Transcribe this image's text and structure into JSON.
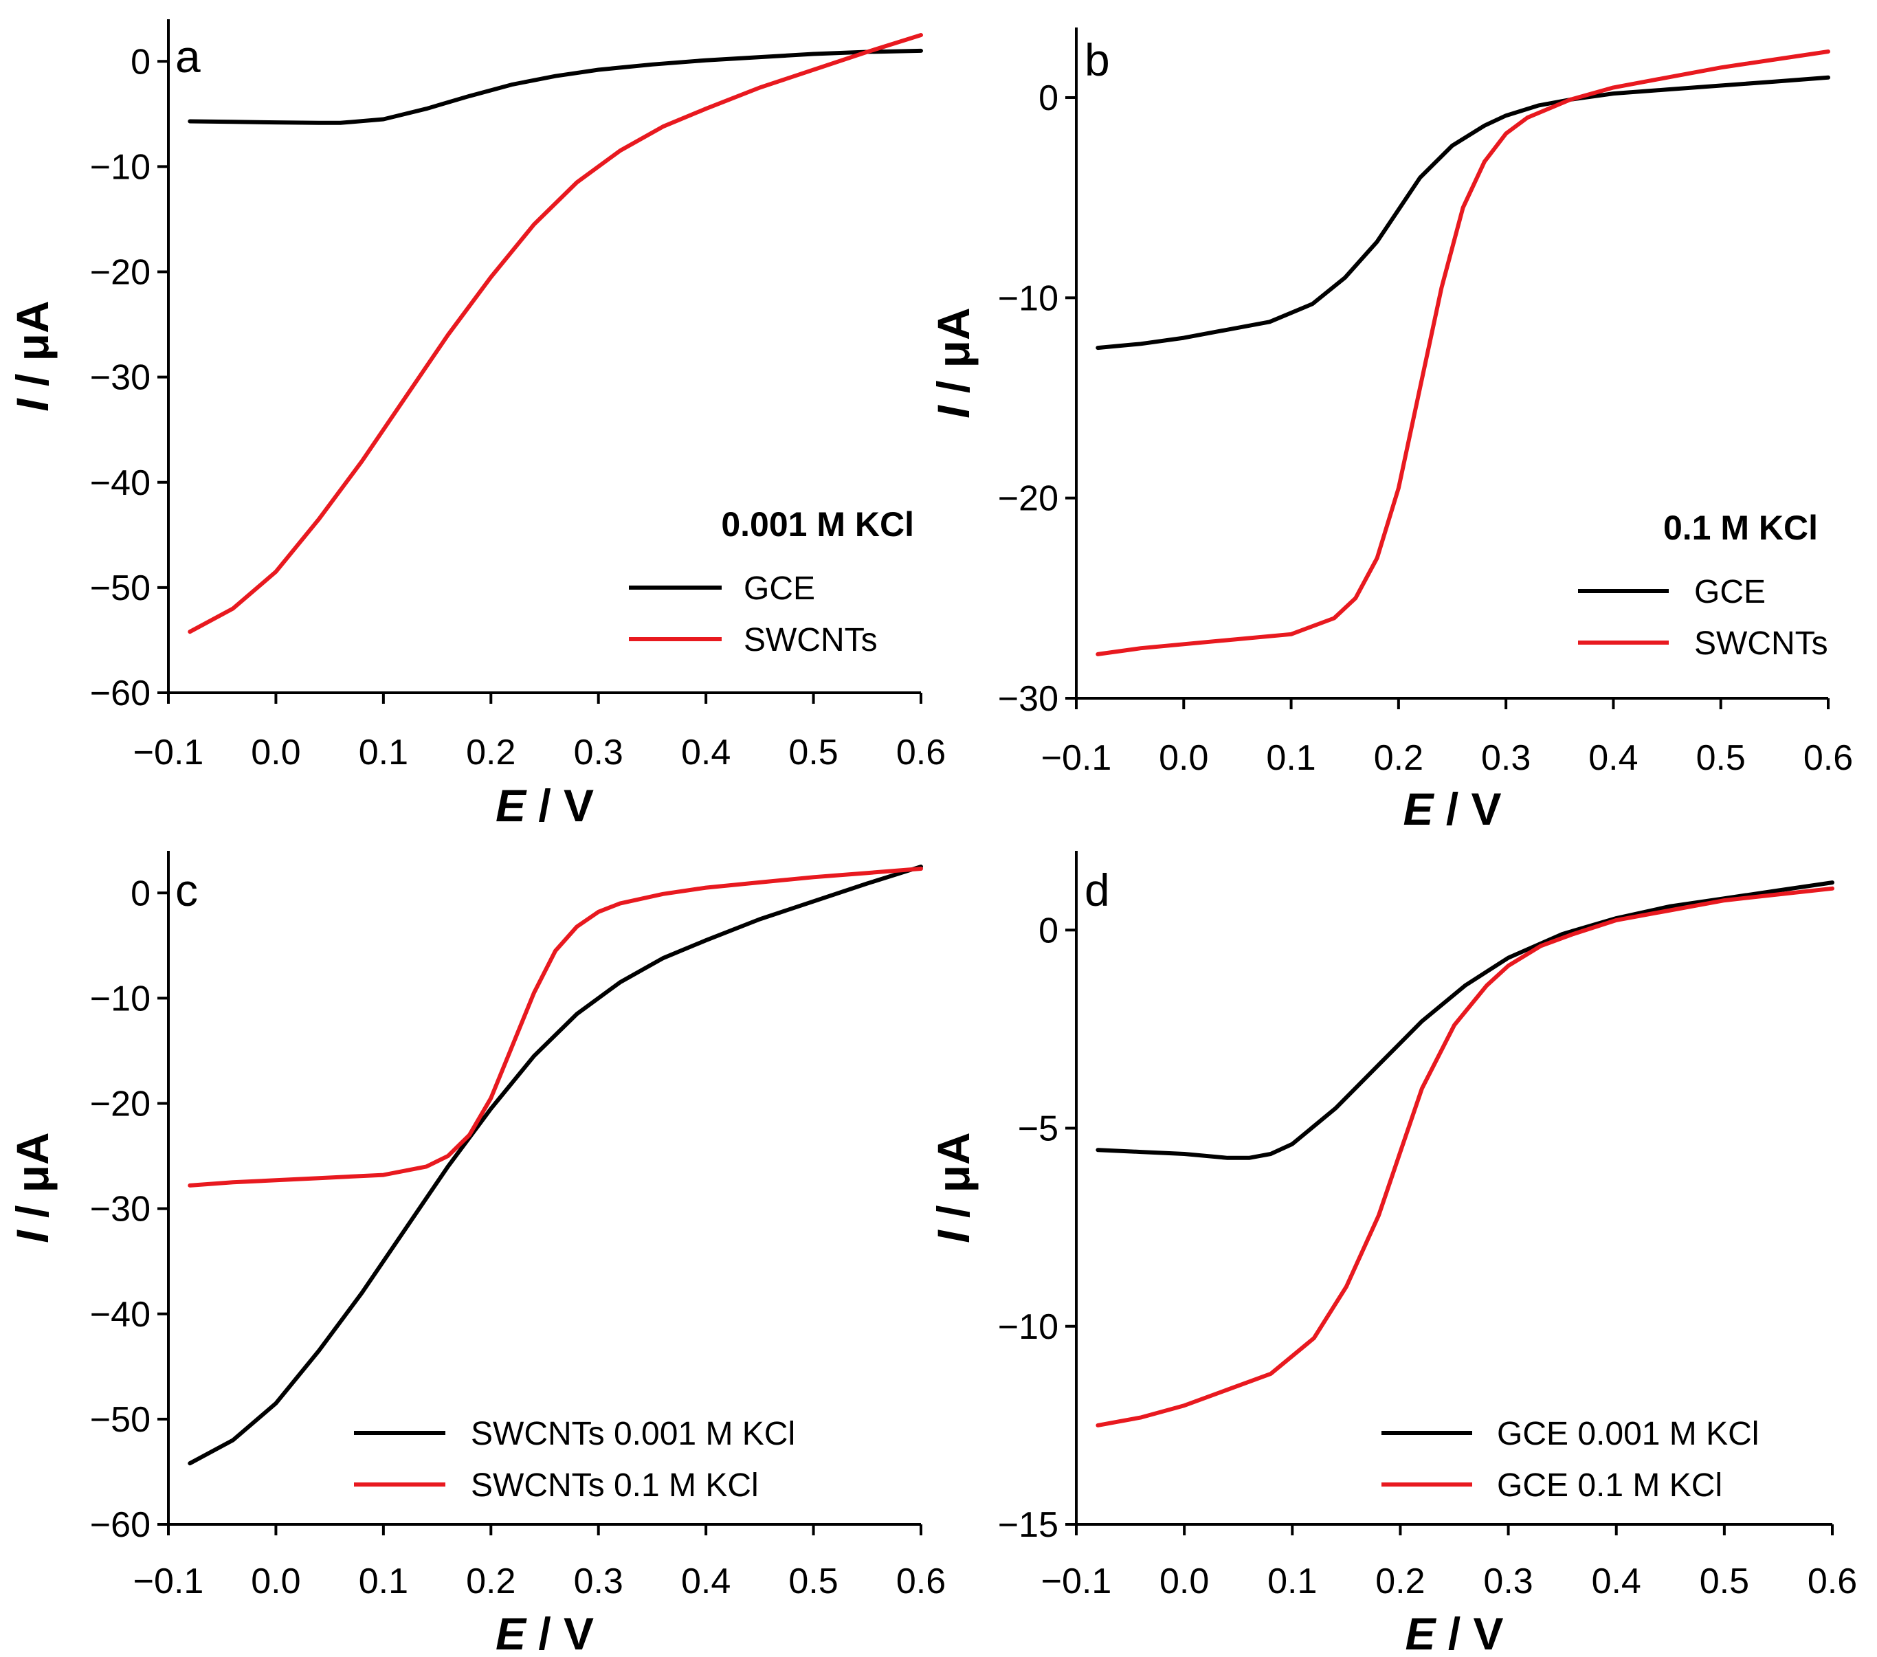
{
  "chart_data": [
    {
      "type": "line",
      "panel": "a",
      "xlabel": {
        "var": "E",
        "unit": "V"
      },
      "ylabel": {
        "var": "I",
        "unit": "μA"
      },
      "xlim": [
        -0.1,
        0.6
      ],
      "ylim": [
        -60,
        4
      ],
      "xticks": [
        -0.1,
        0.0,
        0.1,
        0.2,
        0.3,
        0.4,
        0.5,
        0.6
      ],
      "xtick_labels": [
        "−0.1",
        "0.0",
        "0.1",
        "0.2",
        "0.3",
        "0.4",
        "0.5",
        "0.6"
      ],
      "yticks": [
        0,
        -10,
        -20,
        -30,
        -40,
        -50,
        -60
      ],
      "ytick_labels": [
        "0",
        "−10",
        "−20",
        "−30",
        "−40",
        "−50",
        "−60"
      ],
      "annotation": "0.001 M KCl",
      "series": [
        {
          "name": "GCE",
          "color": "#000000",
          "x": [
            -0.08,
            -0.04,
            0.0,
            0.04,
            0.06,
            0.1,
            0.14,
            0.18,
            0.22,
            0.26,
            0.3,
            0.35,
            0.4,
            0.45,
            0.5,
            0.55,
            0.6
          ],
          "y": [
            -5.7,
            -5.75,
            -5.8,
            -5.85,
            -5.85,
            -5.5,
            -4.5,
            -3.3,
            -2.2,
            -1.4,
            -0.8,
            -0.3,
            0.1,
            0.4,
            0.7,
            0.9,
            1.0
          ]
        },
        {
          "name": "SWCNTs",
          "color": "#e8191f",
          "x": [
            -0.08,
            -0.04,
            0.0,
            0.04,
            0.08,
            0.12,
            0.16,
            0.2,
            0.24,
            0.28,
            0.32,
            0.36,
            0.4,
            0.45,
            0.5,
            0.55,
            0.6
          ],
          "y": [
            -54.2,
            -52.0,
            -48.5,
            -43.5,
            -38.0,
            -32.0,
            -26.0,
            -20.5,
            -15.5,
            -11.5,
            -8.5,
            -6.2,
            -4.5,
            -2.5,
            -0.8,
            0.9,
            2.5
          ]
        }
      ]
    },
    {
      "type": "line",
      "panel": "b",
      "xlabel": {
        "var": "E",
        "unit": "V"
      },
      "ylabel": {
        "var": "I",
        "unit": "μA"
      },
      "xlim": [
        -0.1,
        0.6
      ],
      "ylim": [
        -30,
        3.5
      ],
      "xticks": [
        -0.1,
        0.0,
        0.1,
        0.2,
        0.3,
        0.4,
        0.5,
        0.6
      ],
      "xtick_labels": [
        "−0.1",
        "0.0",
        "0.1",
        "0.2",
        "0.3",
        "0.4",
        "0.5",
        "0.6"
      ],
      "yticks": [
        0,
        -10,
        -20,
        -30
      ],
      "ytick_labels": [
        "0",
        "−10",
        "−20",
        "−30"
      ],
      "annotation": "0.1 M KCl",
      "series": [
        {
          "name": "GCE",
          "color": "#000000",
          "x": [
            -0.08,
            -0.04,
            0.0,
            0.04,
            0.08,
            0.12,
            0.15,
            0.18,
            0.2,
            0.22,
            0.25,
            0.28,
            0.3,
            0.33,
            0.36,
            0.4,
            0.45,
            0.5,
            0.55,
            0.6
          ],
          "y": [
            -12.5,
            -12.3,
            -12.0,
            -11.6,
            -11.2,
            -10.3,
            -9.0,
            -7.2,
            -5.6,
            -4.0,
            -2.4,
            -1.4,
            -0.9,
            -0.4,
            -0.1,
            0.2,
            0.4,
            0.6,
            0.8,
            1.0
          ]
        },
        {
          "name": "SWCNTs",
          "color": "#e8191f",
          "x": [
            -0.08,
            -0.04,
            0.0,
            0.04,
            0.1,
            0.14,
            0.16,
            0.18,
            0.2,
            0.22,
            0.24,
            0.26,
            0.28,
            0.3,
            0.32,
            0.36,
            0.4,
            0.45,
            0.5,
            0.55,
            0.6
          ],
          "y": [
            -27.8,
            -27.5,
            -27.3,
            -27.1,
            -26.8,
            -26.0,
            -25.0,
            -23.0,
            -19.5,
            -14.5,
            -9.5,
            -5.5,
            -3.2,
            -1.8,
            -1.0,
            -0.1,
            0.5,
            1.0,
            1.5,
            1.9,
            2.3
          ]
        }
      ]
    },
    {
      "type": "line",
      "panel": "c",
      "xlabel": {
        "var": "E",
        "unit": "V"
      },
      "ylabel": {
        "var": "I",
        "unit": "μA"
      },
      "xlim": [
        -0.1,
        0.6
      ],
      "ylim": [
        -60,
        4
      ],
      "xticks": [
        -0.1,
        0.0,
        0.1,
        0.2,
        0.3,
        0.4,
        0.5,
        0.6
      ],
      "xtick_labels": [
        "−0.1",
        "0.0",
        "0.1",
        "0.2",
        "0.3",
        "0.4",
        "0.5",
        "0.6"
      ],
      "yticks": [
        0,
        -10,
        -20,
        -30,
        -40,
        -50,
        -60
      ],
      "ytick_labels": [
        "0",
        "−10",
        "−20",
        "−30",
        "−40",
        "−50",
        "−60"
      ],
      "series": [
        {
          "name": "SWCNTs 0.001 M KCl",
          "color": "#000000",
          "x": [
            -0.08,
            -0.04,
            0.0,
            0.04,
            0.08,
            0.12,
            0.16,
            0.2,
            0.24,
            0.28,
            0.32,
            0.36,
            0.4,
            0.45,
            0.5,
            0.55,
            0.6
          ],
          "y": [
            -54.2,
            -52.0,
            -48.5,
            -43.5,
            -38.0,
            -32.0,
            -26.0,
            -20.5,
            -15.5,
            -11.5,
            -8.5,
            -6.2,
            -4.5,
            -2.5,
            -0.8,
            0.9,
            2.5
          ]
        },
        {
          "name": "SWCNTs 0.1 M KCl",
          "color": "#e8191f",
          "x": [
            -0.08,
            -0.04,
            0.0,
            0.04,
            0.1,
            0.14,
            0.16,
            0.18,
            0.2,
            0.22,
            0.24,
            0.26,
            0.28,
            0.3,
            0.32,
            0.36,
            0.4,
            0.45,
            0.5,
            0.55,
            0.6
          ],
          "y": [
            -27.8,
            -27.5,
            -27.3,
            -27.1,
            -26.8,
            -26.0,
            -25.0,
            -23.0,
            -19.5,
            -14.5,
            -9.5,
            -5.5,
            -3.2,
            -1.8,
            -1.0,
            -0.1,
            0.5,
            1.0,
            1.5,
            1.9,
            2.3
          ]
        }
      ]
    },
    {
      "type": "line",
      "panel": "d",
      "xlabel": {
        "var": "E",
        "unit": "V"
      },
      "ylabel": {
        "var": "I",
        "unit": "μA"
      },
      "xlim": [
        -0.1,
        0.6
      ],
      "ylim": [
        -15,
        2
      ],
      "xticks": [
        -0.1,
        0.0,
        0.1,
        0.2,
        0.3,
        0.4,
        0.5,
        0.6
      ],
      "xtick_labels": [
        "−0.1",
        "0.0",
        "0.1",
        "0.2",
        "0.3",
        "0.4",
        "0.5",
        "0.6"
      ],
      "yticks": [
        0,
        -5,
        -10,
        -15
      ],
      "ytick_labels": [
        "0",
        "−5",
        "−10",
        "−15"
      ],
      "series": [
        {
          "name": "GCE 0.001 M KCl",
          "color": "#000000",
          "x": [
            -0.08,
            -0.04,
            0.0,
            0.04,
            0.06,
            0.08,
            0.1,
            0.14,
            0.18,
            0.22,
            0.26,
            0.3,
            0.35,
            0.4,
            0.45,
            0.5,
            0.55,
            0.6
          ],
          "y": [
            -5.55,
            -5.6,
            -5.65,
            -5.75,
            -5.75,
            -5.65,
            -5.4,
            -4.5,
            -3.4,
            -2.3,
            -1.4,
            -0.7,
            -0.1,
            0.3,
            0.6,
            0.8,
            1.0,
            1.2
          ]
        },
        {
          "name": "GCE 0.1 M KCl",
          "color": "#e8191f",
          "x": [
            -0.08,
            -0.04,
            0.0,
            0.04,
            0.08,
            0.12,
            0.15,
            0.18,
            0.2,
            0.22,
            0.25,
            0.28,
            0.3,
            0.33,
            0.36,
            0.4,
            0.45,
            0.5,
            0.55,
            0.6
          ],
          "y": [
            -12.5,
            -12.3,
            -12.0,
            -11.6,
            -11.2,
            -10.3,
            -9.0,
            -7.2,
            -5.6,
            -4.0,
            -2.4,
            -1.4,
            -0.9,
            -0.4,
            -0.1,
            0.25,
            0.5,
            0.75,
            0.9,
            1.05
          ]
        }
      ]
    }
  ]
}
